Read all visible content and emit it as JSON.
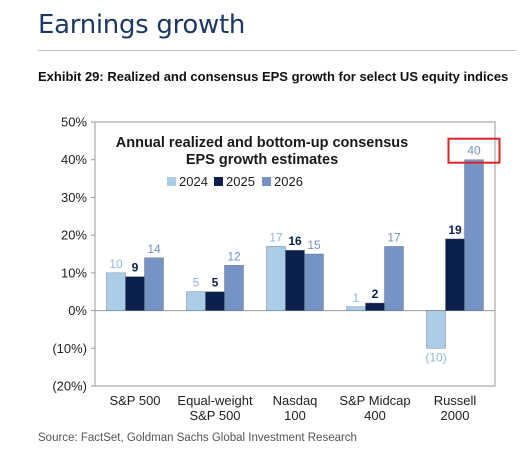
{
  "heading": "Earnings growth",
  "exhibit_title": "Exhibit 29: Realized and consensus EPS growth for select US equity indices",
  "source": "Source: FactSet, Goldman Sachs Global Investment Research",
  "colors": {
    "series_2024": "#a9cde9",
    "series_2025": "#0b1f4b",
    "series_2026": "#7693c5",
    "highlight_box": "#d9262b",
    "heading": "#1f3864"
  },
  "chart_data": {
    "type": "bar",
    "title": "Annual realized and bottom-up consensus EPS growth estimates",
    "title_lines": [
      "Annual realized and bottom-up consensus",
      "EPS growth estimates"
    ],
    "categories": [
      [
        "S&P 500"
      ],
      [
        "Equal-weight",
        "S&P 500"
      ],
      [
        "Nasdaq",
        "100"
      ],
      [
        "S&P Midcap",
        "400"
      ],
      [
        "Russell",
        "2000"
      ]
    ],
    "series": [
      {
        "name": "2024",
        "values": [
          10,
          5,
          17,
          1,
          -10
        ],
        "labels": [
          "10",
          "5",
          "17",
          "1",
          "(10)"
        ]
      },
      {
        "name": "2025",
        "values": [
          9,
          5,
          16,
          2,
          19
        ],
        "labels": [
          "9",
          "5",
          "16",
          "2",
          "19"
        ]
      },
      {
        "name": "2026",
        "values": [
          14,
          12,
          15,
          17,
          40
        ],
        "labels": [
          "14",
          "12",
          "15",
          "17",
          "40"
        ]
      }
    ],
    "ylim": [
      -20,
      50
    ],
    "yticks": [
      50,
      40,
      30,
      20,
      10,
      0,
      -10,
      -20
    ],
    "ytick_labels": [
      "50%",
      "40%",
      "30%",
      "20%",
      "10%",
      "0%",
      "(10%)",
      "(20%)"
    ],
    "xlabel": "",
    "ylabel": "",
    "legend_position": "top-center",
    "grid": false,
    "highlighted_label": "40"
  }
}
